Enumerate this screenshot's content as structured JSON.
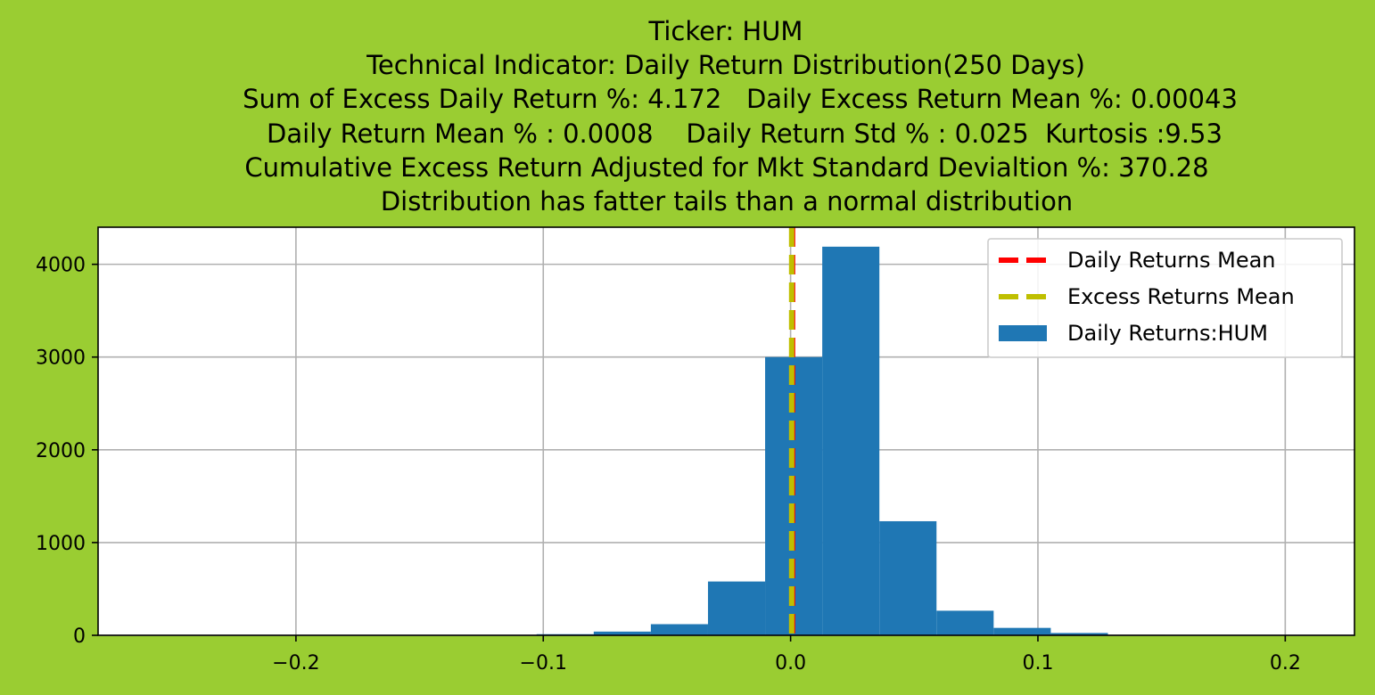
{
  "chart_data": {
    "type": "bar",
    "title_lines": [
      "Ticker: HUM",
      "Technical Indicator: Daily Return Distribution(250 Days)",
      "Sum of Excess Daily Return %: 4.172   Daily Excess Return Mean %: 0.00043",
      "Daily Return Mean % : 0.0008    Daily Return Std % : 0.025  Kurtosis :9.53",
      "Cumulative Excess Return Adjusted for Mkt Standard Devialtion %: 370.28",
      "Distribution has fatter tails than a normal distribution"
    ],
    "xlabel": "",
    "ylabel": "",
    "xlim": [
      -0.28,
      0.228
    ],
    "ylim": [
      0,
      4400
    ],
    "x_ticks": [
      -0.2,
      -0.1,
      0.0,
      0.1,
      0.2
    ],
    "x_tick_labels": [
      "−0.2",
      "−0.1",
      "0.0",
      "0.1",
      "0.2"
    ],
    "y_ticks": [
      0,
      1000,
      2000,
      3000,
      4000
    ],
    "y_tick_labels": [
      "0",
      "1000",
      "2000",
      "3000",
      "4000"
    ],
    "grid": true,
    "legend_position": "upper right",
    "bin_edges": [
      -0.2644,
      -0.2413,
      -0.2182,
      -0.1951,
      -0.172,
      -0.1489,
      -0.1258,
      -0.1027,
      -0.0796,
      -0.0565,
      -0.0334,
      -0.0103,
      0.0128,
      0.0359,
      0.059,
      0.0821,
      0.1052,
      0.1283,
      0.1514,
      0.1745,
      0.1976
    ],
    "counts": [
      1,
      0,
      0,
      0,
      0,
      1,
      3,
      12,
      40,
      120,
      580,
      3000,
      4190,
      1230,
      265,
      80,
      25,
      5,
      2,
      0
    ],
    "series": [
      {
        "name": "Daily Returns:HUM",
        "kind": "histogram",
        "color": "#1f77b4"
      },
      {
        "name": "Daily Returns Mean",
        "kind": "vline",
        "x": 0.0008,
        "color": "#ff0000"
      },
      {
        "name": "Excess Returns Mean",
        "kind": "vline",
        "x": 0.00043,
        "color": "#bfbf00"
      }
    ]
  }
}
